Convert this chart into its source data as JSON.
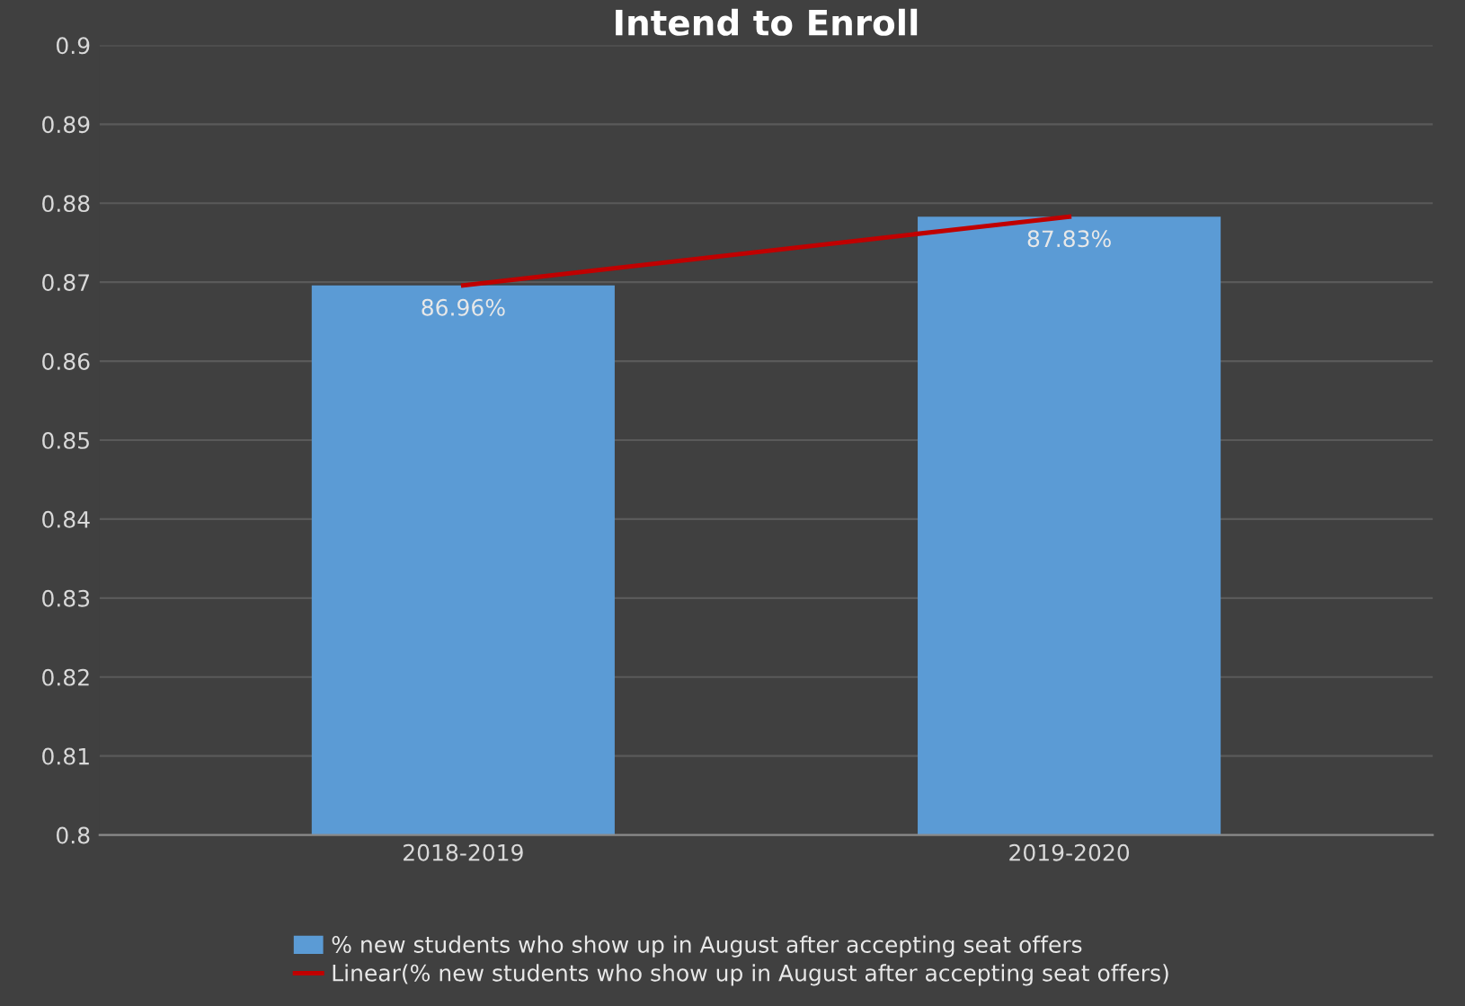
{
  "chart_data": {
    "type": "bar",
    "title": "Intend to Enroll",
    "categories": [
      "2018-2019",
      "2019-2020"
    ],
    "series": [
      {
        "name": "% new students who show up in August after accepting seat offers",
        "color": "#5b9bd5",
        "values": [
          0.8696,
          0.8783
        ],
        "value_labels": [
          "86.96%",
          "87.83%"
        ]
      },
      {
        "name": "Linear(% new students who show up in August after accepting seat offers)",
        "type": "line",
        "color": "#c00000",
        "values": [
          0.8696,
          0.8783
        ]
      }
    ],
    "ylim": [
      0.8,
      0.9
    ],
    "yticks": [
      0.8,
      0.81,
      0.82,
      0.83,
      0.84,
      0.85,
      0.86,
      0.87,
      0.88,
      0.89,
      0.9
    ],
    "grid": "y",
    "legend": "bottom"
  }
}
